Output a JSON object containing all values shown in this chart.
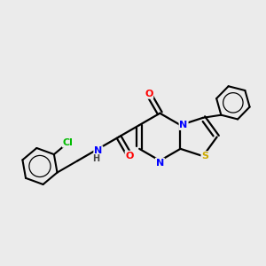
{
  "background_color": "#ebebeb",
  "bond_color": "#000000",
  "atom_colors": {
    "Cl": "#00bb00",
    "O": "#ff0000",
    "N": "#0000ff",
    "S": "#ccaa00",
    "C": "#000000",
    "H": "#555555"
  },
  "figsize": [
    3.0,
    3.0
  ],
  "dpi": 100
}
